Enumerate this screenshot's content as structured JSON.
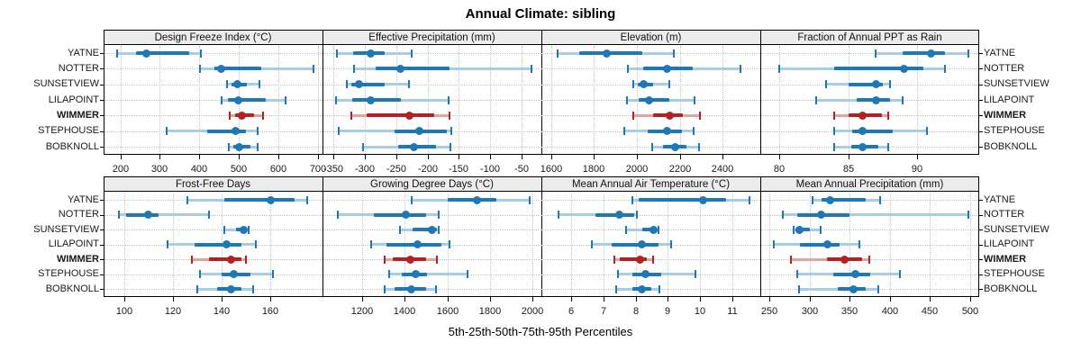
{
  "title": "Annual Climate: sibling",
  "xlabel": "5th-25th-50th-75th-95th Percentiles",
  "sites": [
    "YATNE",
    "NOTTER",
    "SUNSETVIEW",
    "LILAPOINT",
    "WIMMER",
    "STEPHOUSE",
    "BOBKNOLL"
  ],
  "highlight_site": "WIMMER",
  "colors": {
    "series_dark": "#1f77b4",
    "series_light": "#a9cde2",
    "highlight_dark": "#b22222",
    "highlight_light": "#dca7a1",
    "strip_bg": "#ececec",
    "panel_border": "#000000",
    "grid": "#c3c3c3"
  },
  "chart_data": {
    "type": "percentile-dotplot",
    "title": "Annual Climate: sibling",
    "xlabel": "5th-25th-50th-75th-95th Percentiles",
    "percentile_labels": [
      "5th",
      "25th",
      "50th",
      "75th",
      "95th"
    ],
    "legend_position": "none",
    "grid": "dotted",
    "sites": [
      "YATNE",
      "NOTTER",
      "SUNSETVIEW",
      "LILAPOINT",
      "WIMMER",
      "STEPHOUSE",
      "BOBKNOLL"
    ],
    "panels": [
      {
        "title": "Design Freeze Index (°C)",
        "row": 0,
        "col": 0,
        "xlim": [
          160,
          710
        ],
        "ticks": [
          200,
          300,
          400,
          500,
          600,
          700
        ],
        "series": [
          {
            "name": "YATNE",
            "values": [
              193,
              240,
              267,
              375,
              405
            ]
          },
          {
            "name": "NOTTER",
            "values": [
              403,
              438,
              456,
              558,
              690
            ]
          },
          {
            "name": "SUNSETVIEW",
            "values": [
              470,
              481,
              496,
              521,
              553
            ]
          },
          {
            "name": "LILAPOINT",
            "values": [
              456,
              472,
              500,
              569,
              618
            ]
          },
          {
            "name": "WIMMER",
            "values": [
              478,
              491,
              509,
              538,
              562
            ]
          },
          {
            "name": "STEPHOUSE",
            "values": [
              318,
              420,
              492,
              519,
              547
            ]
          },
          {
            "name": "BOBKNOLL",
            "values": [
              474,
              487,
              502,
              530,
              549
            ]
          }
        ]
      },
      {
        "title": "Effective Precipitation (mm)",
        "row": 0,
        "col": 1,
        "xlim": [
          -366,
          -20
        ],
        "ticks": [
          -350,
          -300,
          -250,
          -200,
          -150,
          -100,
          -50
        ],
        "series": [
          {
            "name": "YATNE",
            "values": [
              -344,
              -318,
              -291,
              -268,
              -226
            ]
          },
          {
            "name": "NOTTER",
            "values": [
              -317,
              -283,
              -243,
              -165,
              -35
            ]
          },
          {
            "name": "SUNSETVIEW",
            "values": [
              -328,
              -321,
              -309,
              -269,
              -229
            ]
          },
          {
            "name": "LILAPOINT",
            "values": [
              -346,
              -320,
              -290,
              -243,
              -167
            ]
          },
          {
            "name": "WIMMER",
            "values": [
              -321,
              -297,
              -229,
              -189,
              -165
            ]
          },
          {
            "name": "STEPHOUSE",
            "values": [
              -341,
              -253,
              -213,
              -170,
              -162
            ]
          },
          {
            "name": "BOBKNOLL",
            "values": [
              -303,
              -247,
              -221,
              -186,
              -164
            ]
          }
        ]
      },
      {
        "title": "Elevation (m)",
        "row": 0,
        "col": 2,
        "xlim": [
          1560,
          2570
        ],
        "ticks": [
          1600,
          1800,
          2000,
          2200,
          2400
        ],
        "series": [
          {
            "name": "YATNE",
            "values": [
              1630,
              1730,
              1860,
              2025,
              2170
            ]
          },
          {
            "name": "NOTTER",
            "values": [
              1960,
              2030,
              2140,
              2260,
              2480
            ]
          },
          {
            "name": "SUNSETVIEW",
            "values": [
              1985,
              2005,
              2030,
              2075,
              2150
            ]
          },
          {
            "name": "LILAPOINT",
            "values": [
              1955,
              2010,
              2055,
              2150,
              2270
            ]
          },
          {
            "name": "WIMMER",
            "values": [
              1985,
              2075,
              2155,
              2215,
              2295
            ]
          },
          {
            "name": "STEPHOUSE",
            "values": [
              1940,
              2050,
              2140,
              2210,
              2265
            ]
          },
          {
            "name": "BOBKNOLL",
            "values": [
              2070,
              2120,
              2180,
              2230,
              2290
            ]
          }
        ]
      },
      {
        "title": "Fraction of Annual PPT as Rain",
        "row": 0,
        "col": 3,
        "xlim": [
          78.7,
          94.4
        ],
        "ticks": [
          80,
          85,
          90
        ],
        "series": [
          {
            "name": "YATNE",
            "values": [
              87.0,
              88.9,
              91.0,
              92.0,
              93.7
            ]
          },
          {
            "name": "NOTTER",
            "values": [
              80.0,
              84.0,
              89.0,
              90.4,
              92.0
            ]
          },
          {
            "name": "SUNSETVIEW",
            "values": [
              83.4,
              85.0,
              87.0,
              87.5,
              88.0
            ]
          },
          {
            "name": "LILAPOINT",
            "values": [
              82.7,
              85.6,
              87.0,
              88.0,
              88.9
            ]
          },
          {
            "name": "WIMMER",
            "values": [
              84.0,
              85.0,
              86.0,
              87.4,
              87.9
            ]
          },
          {
            "name": "STEPHOUSE",
            "values": [
              84.0,
              85.3,
              86.0,
              88.2,
              90.7
            ]
          },
          {
            "name": "BOBKNOLL",
            "values": [
              84.0,
              85.2,
              86.0,
              87.2,
              87.9
            ]
          }
        ]
      },
      {
        "title": "Frost-Free Days",
        "row": 1,
        "col": 0,
        "xlim": [
          92,
          181
        ],
        "ticks": [
          100,
          120,
          140,
          160
        ],
        "series": [
          {
            "name": "YATNE",
            "values": [
              126,
              141,
              160,
              170,
              175
            ]
          },
          {
            "name": "NOTTER",
            "values": [
              98,
              101,
              110,
              114,
              135
            ]
          },
          {
            "name": "SUNSETVIEW",
            "values": [
              141,
              146,
              149,
              150,
              151
            ]
          },
          {
            "name": "LILAPOINT",
            "values": [
              118,
              129,
              142,
              148,
              154
            ]
          },
          {
            "name": "WIMMER",
            "values": [
              128,
              135,
              144,
              148,
              150
            ]
          },
          {
            "name": "STEPHOUSE",
            "values": [
              131,
              140,
              145,
              152,
              161
            ]
          },
          {
            "name": "BOBKNOLL",
            "values": [
              130,
              138,
              144,
              148,
              153
            ]
          }
        ]
      },
      {
        "title": "Growing Degree Days (°C)",
        "row": 1,
        "col": 1,
        "xlim": [
          1017,
          2037
        ],
        "ticks": [
          1200,
          1400,
          1600,
          1800,
          2000
        ],
        "series": [
          {
            "name": "YATNE",
            "values": [
              1430,
              1600,
              1740,
              1830,
              1985
            ]
          },
          {
            "name": "NOTTER",
            "values": [
              1085,
              1255,
              1405,
              1500,
              1560
            ]
          },
          {
            "name": "SUNSETVIEW",
            "values": [
              1375,
              1435,
              1525,
              1550,
              1560
            ]
          },
          {
            "name": "LILAPOINT",
            "values": [
              1240,
              1315,
              1460,
              1570,
              1610
            ]
          },
          {
            "name": "WIMMER",
            "values": [
              1305,
              1345,
              1425,
              1500,
              1550
            ]
          },
          {
            "name": "STEPHOUSE",
            "values": [
              1325,
              1385,
              1450,
              1505,
              1695
            ]
          },
          {
            "name": "BOBKNOLL",
            "values": [
              1305,
              1350,
              1430,
              1500,
              1545
            ]
          }
        ]
      },
      {
        "title": "Mean Annual Air Temperature (°C)",
        "row": 1,
        "col": 2,
        "xlim": [
          5.1,
          11.85
        ],
        "ticks": [
          6,
          7,
          8,
          9,
          10,
          11
        ],
        "series": [
          {
            "name": "YATNE",
            "values": [
              7.9,
              8.1,
              10.1,
              10.8,
              11.55
            ]
          },
          {
            "name": "NOTTER",
            "values": [
              5.6,
              6.75,
              7.5,
              7.95,
              8.05
            ]
          },
          {
            "name": "SUNSETVIEW",
            "values": [
              7.7,
              8.2,
              8.55,
              8.65,
              8.7
            ]
          },
          {
            "name": "LILAPOINT",
            "values": [
              6.65,
              7.25,
              8.2,
              8.7,
              9.1
            ]
          },
          {
            "name": "WIMMER",
            "values": [
              7.35,
              7.5,
              8.15,
              8.35,
              8.55
            ]
          },
          {
            "name": "STEPHOUSE",
            "values": [
              7.45,
              7.9,
              8.3,
              8.8,
              9.85
            ]
          },
          {
            "name": "BOBKNOLL",
            "values": [
              7.4,
              7.9,
              8.2,
              8.5,
              8.75
            ]
          }
        ]
      },
      {
        "title": "Mean Annual Precipitation (mm)",
        "row": 1,
        "col": 3,
        "xlim": [
          240,
          510
        ],
        "ticks": [
          250,
          300,
          350,
          400,
          450,
          500
        ],
        "series": [
          {
            "name": "YATNE",
            "values": [
              304,
              315,
              326,
              370,
              388
            ]
          },
          {
            "name": "NOTTER",
            "values": [
              267,
              285,
              315,
              350,
              498
            ]
          },
          {
            "name": "SUNSETVIEW",
            "values": [
              280,
              283,
              288,
              300,
              314
            ]
          },
          {
            "name": "LILAPOINT",
            "values": [
              256,
              288,
              322,
              338,
              362
            ]
          },
          {
            "name": "WIMMER",
            "values": [
              277,
              322,
              344,
              366,
              374
            ]
          },
          {
            "name": "STEPHOUSE",
            "values": [
              285,
              330,
              357,
              376,
              413
            ]
          },
          {
            "name": "BOBKNOLL",
            "values": [
              287,
              335,
              355,
              370,
              386
            ]
          }
        ]
      }
    ]
  }
}
